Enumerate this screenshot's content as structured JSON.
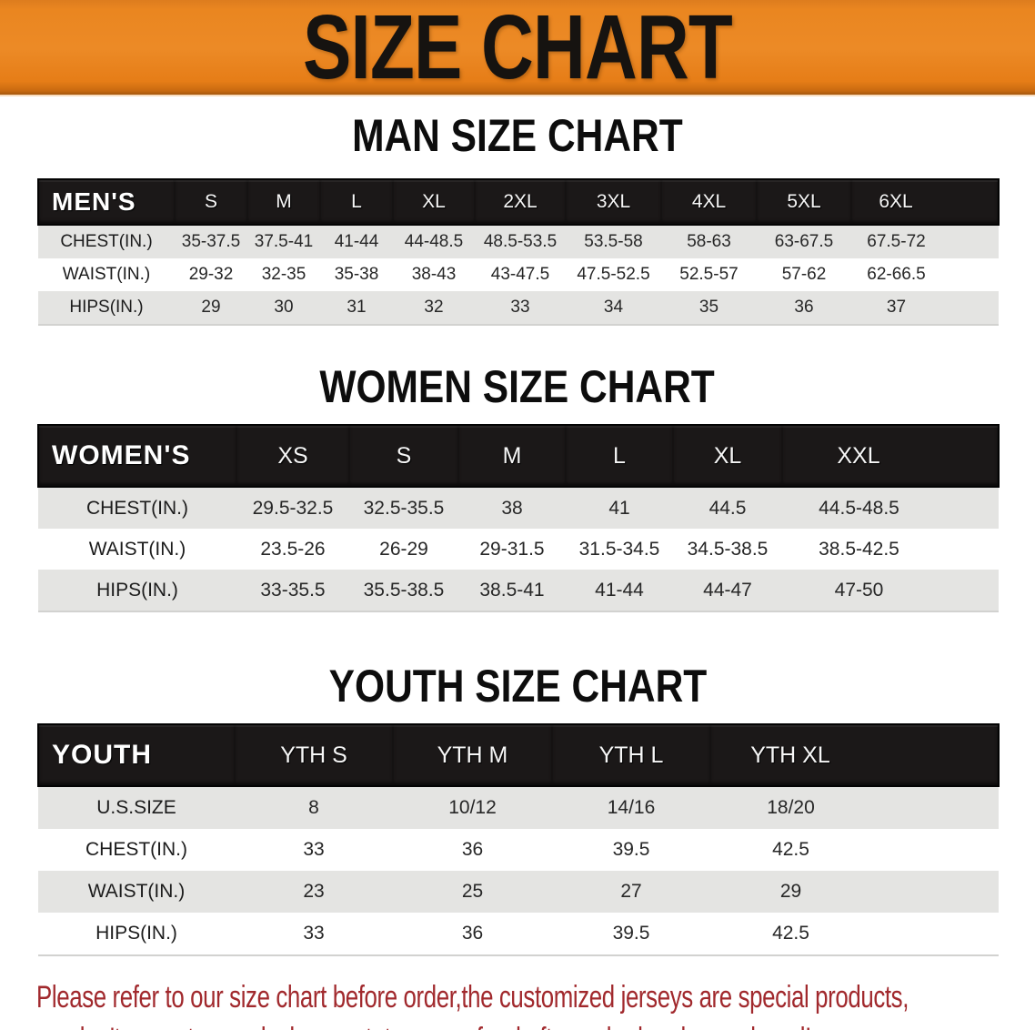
{
  "banner": {
    "title": "SIZE CHART",
    "background_color": "#E8821C"
  },
  "man_section": {
    "heading": "MAN SIZE CHART",
    "table": {
      "header": [
        "MEN'S",
        "S",
        "M",
        "L",
        "XL",
        "2XL",
        "3XL",
        "4XL",
        "5XL",
        "6XL"
      ],
      "rows": [
        {
          "label": "CHEST(IN.)",
          "values": [
            "35-37.5",
            "37.5-41",
            "41-44",
            "44-48.5",
            "48.5-53.5",
            "53.5-58",
            "58-63",
            "63-67.5",
            "67.5-72"
          ]
        },
        {
          "label": "WAIST(IN.)",
          "values": [
            "29-32",
            "32-35",
            "35-38",
            "38-43",
            "43-47.5",
            "47.5-52.5",
            "52.5-57",
            "57-62",
            "62-66.5"
          ]
        },
        {
          "label": "HIPS(IN.)",
          "values": [
            "29",
            "30",
            "31",
            "32",
            "33",
            "34",
            "35",
            "36",
            "37"
          ]
        }
      ]
    }
  },
  "women_section": {
    "heading": "WOMEN SIZE CHART",
    "table": {
      "header": [
        "WOMEN'S",
        "XS",
        "S",
        "M",
        "L",
        "XL",
        "XXL"
      ],
      "rows": [
        {
          "label": "CHEST(IN.)",
          "values": [
            "29.5-32.5",
            "32.5-35.5",
            "38",
            "41",
            "44.5",
            "44.5-48.5"
          ]
        },
        {
          "label": "WAIST(IN.)",
          "values": [
            "23.5-26",
            "26-29",
            "29-31.5",
            "31.5-34.5",
            "34.5-38.5",
            "38.5-42.5"
          ]
        },
        {
          "label": "HIPS(IN.)",
          "values": [
            "33-35.5",
            "35.5-38.5",
            "38.5-41",
            "41-44",
            "44-47",
            "47-50"
          ]
        }
      ]
    }
  },
  "youth_section": {
    "heading": "YOUTH SIZE CHART",
    "table": {
      "header": [
        "YOUTH",
        "YTH S",
        "YTH M",
        "YTH L",
        "YTH XL"
      ],
      "rows": [
        {
          "label": "U.S.SIZE",
          "values": [
            "8",
            "10/12",
            "14/16",
            "18/20"
          ]
        },
        {
          "label": "CHEST(IN.)",
          "values": [
            "33",
            "36",
            "39.5",
            "42.5"
          ]
        },
        {
          "label": "WAIST(IN.)",
          "values": [
            "23",
            "25",
            "27",
            "29"
          ]
        },
        {
          "label": "HIPS(IN.)",
          "values": [
            "33",
            "36",
            "39.5",
            "42.5"
          ]
        }
      ]
    }
  },
  "disclaimer": {
    "line1": "Please refer to our size chart before order,the customized jerseys are special products,",
    "line2": "we don't accept cancel, change, teturn or refund after order has been placed!"
  },
  "colors": {
    "banner_orange": "#E8821C",
    "header_bar_black": "#1B1818",
    "row_gray": "#E4E4E2",
    "disclaimer_red": "#A1292D"
  }
}
